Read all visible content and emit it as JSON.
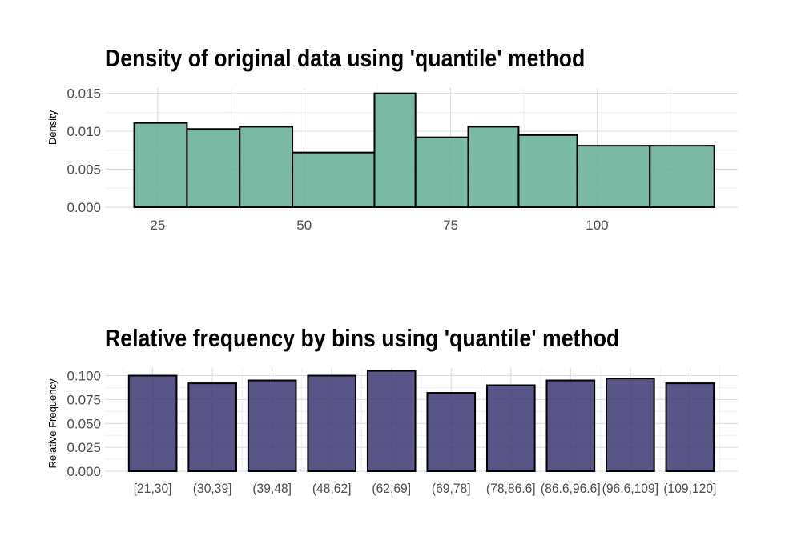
{
  "chart_data": [
    {
      "type": "bar",
      "subtype": "histogram",
      "title": "Density of original data using 'quantile' method",
      "ylabel": "Density",
      "xlabel": "",
      "xlim": [
        16,
        124
      ],
      "ylim": [
        0,
        0.0157
      ],
      "x_ticks": [
        25,
        50,
        75,
        100
      ],
      "x_tick_labels": [
        "25",
        "50",
        "75",
        "100"
      ],
      "y_ticks": [
        0,
        0.005,
        0.01,
        0.015
      ],
      "y_tick_labels": [
        "0.000",
        "0.005",
        "0.010",
        "0.015"
      ],
      "bins": [
        {
          "start": 21,
          "end": 30,
          "value": 0.0111
        },
        {
          "start": 30,
          "end": 39,
          "value": 0.0103
        },
        {
          "start": 39,
          "end": 48,
          "value": 0.0106
        },
        {
          "start": 48,
          "end": 62,
          "value": 0.0072
        },
        {
          "start": 62,
          "end": 69,
          "value": 0.015
        },
        {
          "start": 69,
          "end": 78,
          "value": 0.0092
        },
        {
          "start": 78,
          "end": 86.6,
          "value": 0.0106
        },
        {
          "start": 86.6,
          "end": 96.6,
          "value": 0.0095
        },
        {
          "start": 96.6,
          "end": 109,
          "value": 0.0081
        },
        {
          "start": 109,
          "end": 120,
          "value": 0.0081
        }
      ],
      "fill_color": "#6cb39b",
      "grid": true,
      "legend": "none"
    },
    {
      "type": "bar",
      "title": "Relative frequency by bins using 'quantile' method",
      "ylabel": "Relative Frequency",
      "xlabel": "",
      "categories": [
        "[21,30]",
        "(30,39]",
        "(39,48]",
        "(48,62]",
        "(62,69]",
        "(69,78]",
        "(78,86.6]",
        "(86.6,96.6]",
        "(96.6,109]",
        "(109,120]"
      ],
      "values": [
        0.1,
        0.092,
        0.095,
        0.1,
        0.105,
        0.082,
        0.09,
        0.095,
        0.097,
        0.092
      ],
      "ylim": [
        0,
        0.108
      ],
      "y_ticks": [
        0,
        0.025,
        0.05,
        0.075,
        0.1
      ],
      "y_tick_labels": [
        "0.000",
        "0.025",
        "0.050",
        "0.075",
        "0.100"
      ],
      "fill_color": "#47437a",
      "grid": true,
      "legend": "none"
    }
  ]
}
